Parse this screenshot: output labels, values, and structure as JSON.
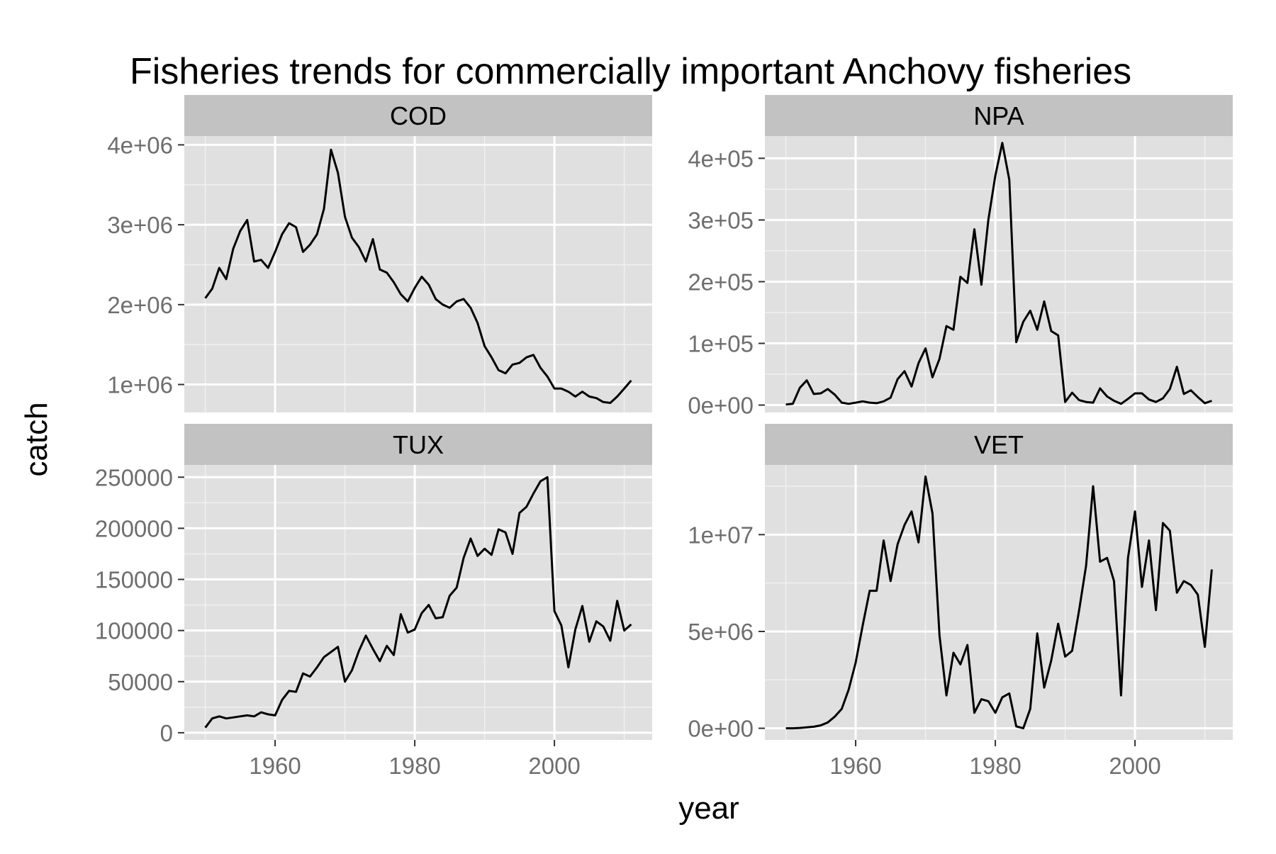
{
  "figure": {
    "title": "Fisheries trends for commercially important Anchovy fisheries",
    "xlabel": "year",
    "ylabel": "catch"
  },
  "colors": {
    "panel_bg": "#e0e0e0",
    "strip_bg": "#c2c2c2",
    "grid_major": "#ffffff",
    "grid_minor": "#f0f0f0",
    "line": "#000000",
    "tick_text": "#6e6e6e",
    "text": "#000000"
  },
  "chart_data": [
    {
      "type": "line",
      "title": "COD",
      "x_start": 1950,
      "xlim": [
        1947,
        2014
      ],
      "x_ticks": [
        1960,
        1980,
        2000
      ],
      "x_tick_labels": [
        "1960",
        "1980",
        "2000"
      ],
      "ylim": [
        650000,
        4110000
      ],
      "y_ticks": [
        1000000,
        2000000,
        3000000,
        4000000
      ],
      "y_tick_labels": [
        "1e+06",
        "2e+06",
        "3e+06",
        "4e+06"
      ],
      "values": [
        2080000,
        2200000,
        2460000,
        2320000,
        2700000,
        2920000,
        3060000,
        2540000,
        2560000,
        2460000,
        2660000,
        2880000,
        3020000,
        2970000,
        2660000,
        2750000,
        2880000,
        3200000,
        3940000,
        3650000,
        3100000,
        2840000,
        2720000,
        2540000,
        2820000,
        2440000,
        2400000,
        2280000,
        2130000,
        2040000,
        2210000,
        2350000,
        2250000,
        2070000,
        2000000,
        1960000,
        2040000,
        2070000,
        1960000,
        1770000,
        1480000,
        1340000,
        1180000,
        1140000,
        1250000,
        1270000,
        1340000,
        1370000,
        1210000,
        1100000,
        950000,
        950000,
        910000,
        850000,
        910000,
        850000,
        830000,
        780000,
        770000,
        850000,
        950000,
        1050000
      ]
    },
    {
      "type": "line",
      "title": "NPA",
      "x_start": 1950,
      "xlim": [
        1947,
        2014
      ],
      "x_ticks": [
        1960,
        1980,
        2000
      ],
      "x_tick_labels": [
        "1960",
        "1980",
        "2000"
      ],
      "ylim": [
        -12000,
        436000
      ],
      "y_ticks": [
        0,
        100000,
        200000,
        300000,
        400000
      ],
      "y_tick_labels": [
        "0e+00",
        "1e+05",
        "2e+05",
        "3e+05",
        "4e+05"
      ],
      "values": [
        1000,
        2000,
        28000,
        40000,
        18000,
        19000,
        26000,
        17000,
        4000,
        2000,
        4000,
        6000,
        4000,
        3000,
        6000,
        12000,
        42000,
        55000,
        30000,
        68000,
        92000,
        45000,
        75000,
        128000,
        122000,
        208000,
        198000,
        285000,
        195000,
        300000,
        372000,
        425000,
        365000,
        102000,
        135000,
        153000,
        122000,
        168000,
        120000,
        113000,
        5000,
        20000,
        8000,
        5000,
        4000,
        27000,
        14000,
        7000,
        2000,
        10000,
        19000,
        19000,
        9000,
        5000,
        11000,
        26000,
        62000,
        18000,
        24000,
        13000,
        3000,
        7000
      ]
    },
    {
      "type": "line",
      "title": "TUX",
      "x_start": 1950,
      "xlim": [
        1947,
        2014
      ],
      "x_ticks": [
        1960,
        1980,
        2000
      ],
      "x_tick_labels": [
        "1960",
        "1980",
        "2000"
      ],
      "ylim": [
        -7000,
        262000
      ],
      "y_ticks": [
        0,
        50000,
        100000,
        150000,
        200000,
        250000
      ],
      "y_tick_labels": [
        "0",
        "50000",
        "100000",
        "150000",
        "200000",
        "250000"
      ],
      "values": [
        5000,
        14000,
        16000,
        14000,
        15000,
        16000,
        17000,
        16000,
        20000,
        18000,
        17000,
        32000,
        41000,
        40000,
        58000,
        55000,
        64000,
        74000,
        79000,
        84000,
        50000,
        61000,
        80000,
        95000,
        82000,
        70000,
        85000,
        76000,
        116000,
        98000,
        101000,
        117000,
        125000,
        112000,
        113000,
        134000,
        142000,
        171000,
        190000,
        173000,
        180000,
        174000,
        199000,
        196000,
        175000,
        215000,
        221000,
        234000,
        246000,
        250000,
        119000,
        105000,
        64000,
        101000,
        124000,
        89000,
        109000,
        104000,
        90000,
        129000,
        100000,
        106000
      ]
    },
    {
      "type": "line",
      "title": "VET",
      "x_start": 1950,
      "xlim": [
        1947,
        2014
      ],
      "x_ticks": [
        1960,
        1980,
        2000
      ],
      "x_tick_labels": [
        "1960",
        "1980",
        "2000"
      ],
      "ylim": [
        -600000,
        13600000
      ],
      "y_ticks": [
        0,
        5000000,
        10000000
      ],
      "y_tick_labels": [
        "0e+00",
        "5e+06",
        "1e+07"
      ],
      "values": [
        0,
        0,
        20000,
        50000,
        80000,
        150000,
        300000,
        600000,
        1000000,
        2000000,
        3400000,
        5300000,
        7100000,
        7100000,
        9700000,
        7600000,
        9500000,
        10500000,
        11200000,
        9600000,
        13000000,
        11100000,
        4800000,
        1700000,
        3900000,
        3300000,
        4300000,
        800000,
        1500000,
        1400000,
        800000,
        1600000,
        1800000,
        100000,
        0,
        1000000,
        4900000,
        2100000,
        3500000,
        5400000,
        3700000,
        4000000,
        6100000,
        8400000,
        12500000,
        8600000,
        8800000,
        7600000,
        1700000,
        8800000,
        11200000,
        7300000,
        9700000,
        6100000,
        10600000,
        10200000,
        7000000,
        7600000,
        7400000,
        6900000,
        4200000,
        8200000
      ]
    }
  ]
}
